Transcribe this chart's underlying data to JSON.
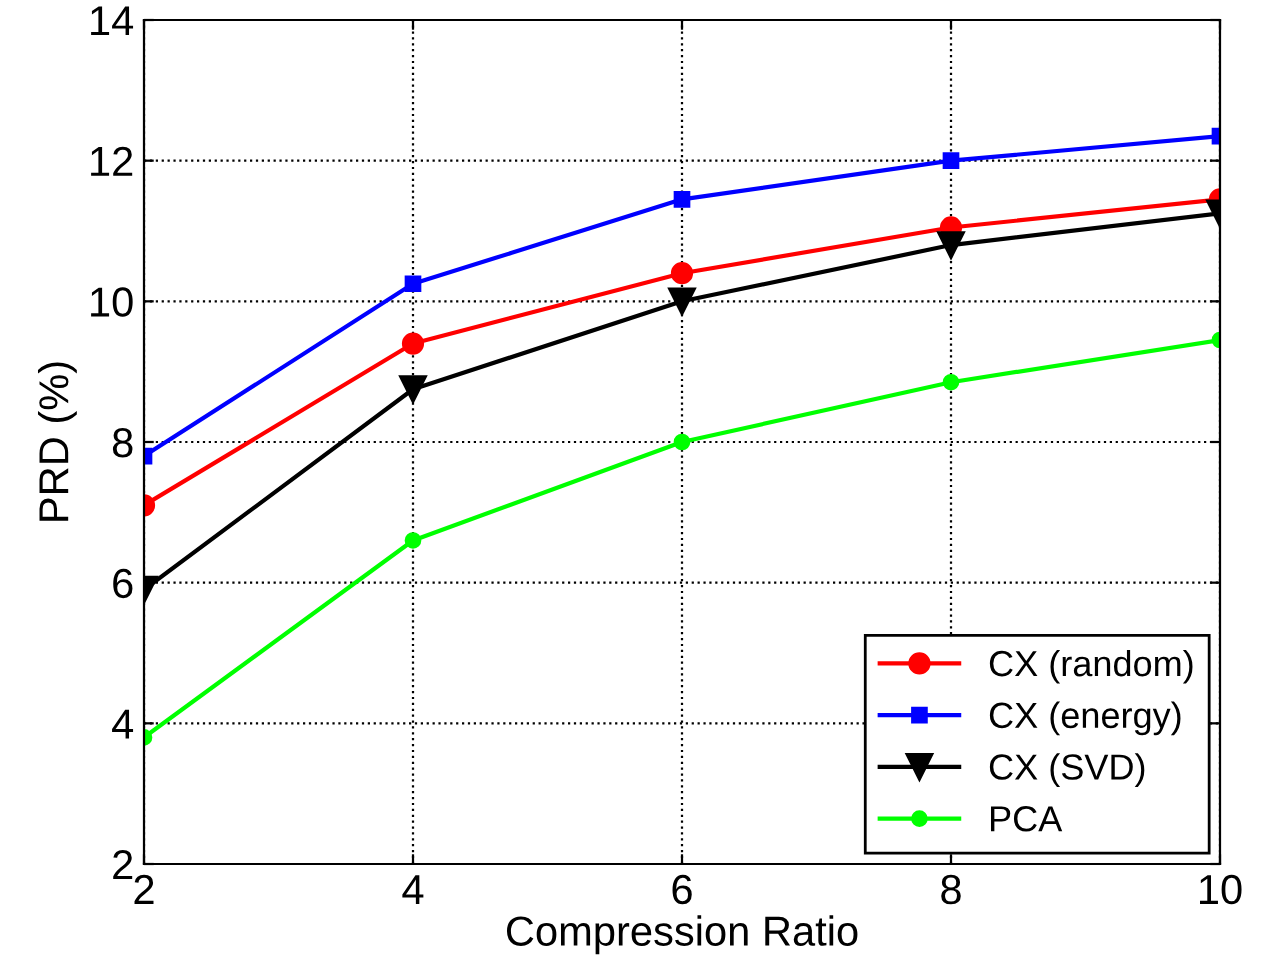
{
  "chart_data": {
    "type": "line",
    "xlabel": "Compression Ratio",
    "ylabel": "PRD (%)",
    "x": [
      2,
      4,
      6,
      8,
      10
    ],
    "series": [
      {
        "name": "CX (random)",
        "color": "#ff0000",
        "marker": "circle",
        "values": [
          7.1,
          9.4,
          10.4,
          11.05,
          11.45
        ]
      },
      {
        "name": "CX (energy)",
        "color": "#0000ff",
        "marker": "square",
        "values": [
          7.8,
          10.25,
          11.45,
          12.0,
          12.35
        ]
      },
      {
        "name": "CX (SVD)",
        "color": "#000000",
        "marker": "triangle",
        "values": [
          5.9,
          8.75,
          10.0,
          10.8,
          11.25
        ]
      },
      {
        "name": "PCA",
        "color": "#00ff00",
        "marker": "circle",
        "values": [
          3.8,
          6.6,
          8.0,
          8.85,
          9.45
        ]
      }
    ],
    "xlim": [
      2,
      10
    ],
    "xticks": [
      2,
      4,
      6,
      8,
      10
    ],
    "ylim": [
      2,
      14
    ],
    "yticks": [
      2,
      4,
      6,
      8,
      10,
      12,
      14
    ],
    "grid": true,
    "legend": "bottom right",
    "line_style": "solid"
  }
}
